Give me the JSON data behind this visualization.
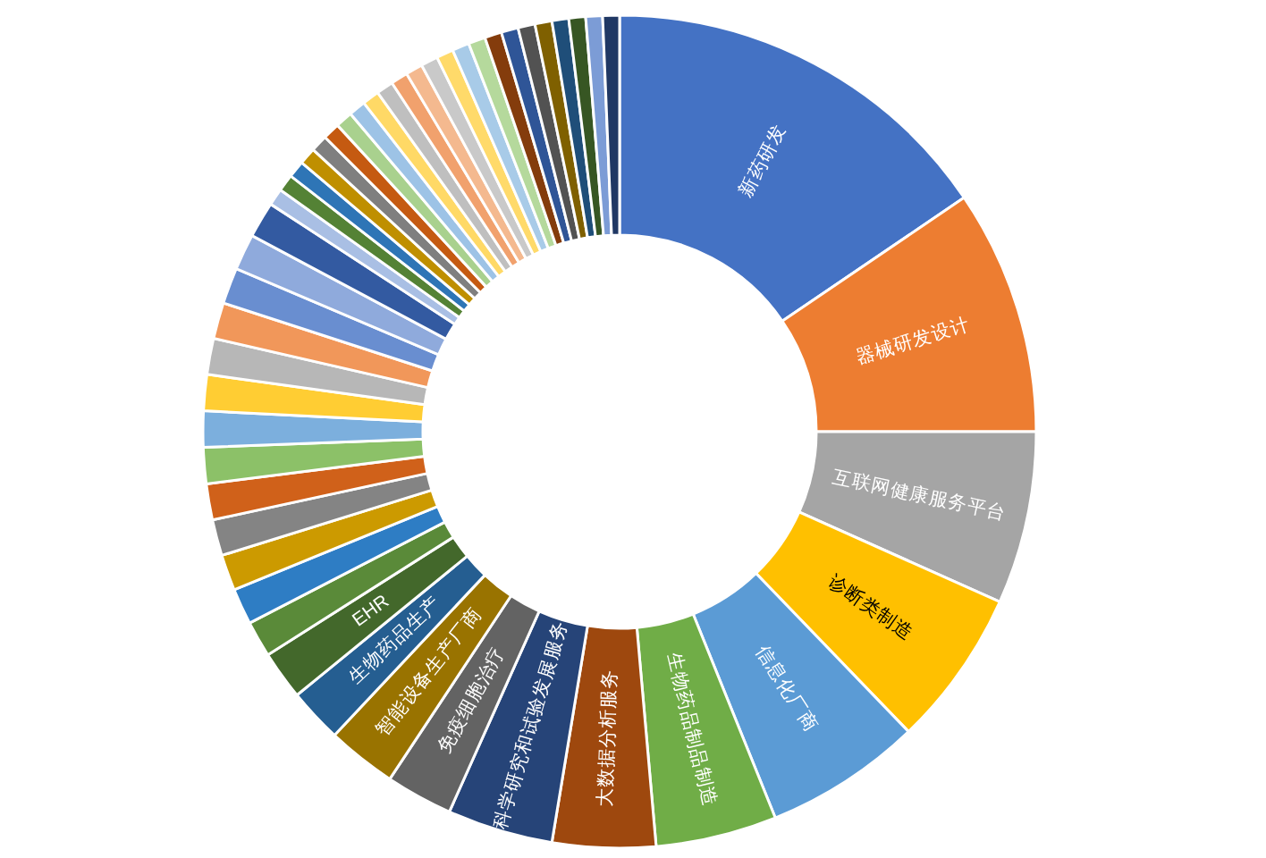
{
  "chart_data": {
    "type": "donut",
    "categories": [
      "新药研发",
      "器械研发设计",
      "互联网健康服务平台",
      "诊断类制造",
      "信息化厂商",
      "生物药品制品制造",
      "大数据分析服务",
      "科学研究和试验发展服务",
      "免疫细胞治疗",
      "智能设备生产厂商",
      "生物药品生产",
      "EHR",
      null,
      null,
      null,
      null,
      null,
      null,
      null,
      null,
      null,
      null,
      null,
      null,
      null,
      null,
      null,
      null,
      null,
      null,
      null,
      null,
      null,
      null,
      null,
      null,
      null,
      null,
      null,
      null,
      null,
      null,
      null,
      null,
      null,
      null,
      null,
      null,
      null
    ],
    "values": [
      15.5,
      9.5,
      6.7,
      6.1,
      6.1,
      4.7,
      4.0,
      4.1,
      2.6,
      2.7,
      2.1,
      1.9,
      1.4,
      1.4,
      1.4,
      1.4,
      1.4,
      1.4,
      1.4,
      1.4,
      1.4,
      1.4,
      1.4,
      1.4,
      1.4,
      0.66,
      0.66,
      0.66,
      0.66,
      0.66,
      0.66,
      0.66,
      0.66,
      0.66,
      0.66,
      0.66,
      0.66,
      0.66,
      0.66,
      0.66,
      0.66,
      0.66,
      0.66,
      0.66,
      0.66,
      0.65,
      0.65,
      0.65,
      0.65
    ],
    "colors": [
      "#4472C4",
      "#ED7D31",
      "#A5A5A5",
      "#FFC000",
      "#5B9BD5",
      "#70AD47",
      "#9E480E",
      "#264478",
      "#636363",
      "#997300",
      "#255E91",
      "#43682B",
      "#5A8A39",
      "#2E7DC4",
      "#CC9A00",
      "#848484",
      "#D0611A",
      "#8CC168",
      "#7CAFDD",
      "#FFCD33",
      "#B7B7B7",
      "#F1975A",
      "#698ED0",
      "#8FAADC",
      "#335AA1",
      "#A9BFE4",
      "#548235",
      "#2E75B6",
      "#BF8F00",
      "#7F7F7F",
      "#C55A11",
      "#A9D18E",
      "#9DC3E6",
      "#FFD966",
      "#BFBFBF",
      "#F1A16D",
      "#F4B98F",
      "#C9C9C9",
      "#FFDA6A",
      "#A8CBE8",
      "#B5D99C",
      "#843C0C",
      "#2F5597",
      "#525252",
      "#7F6000",
      "#1F4E79",
      "#375623",
      "#7C9CD6",
      "#203864"
    ]
  }
}
